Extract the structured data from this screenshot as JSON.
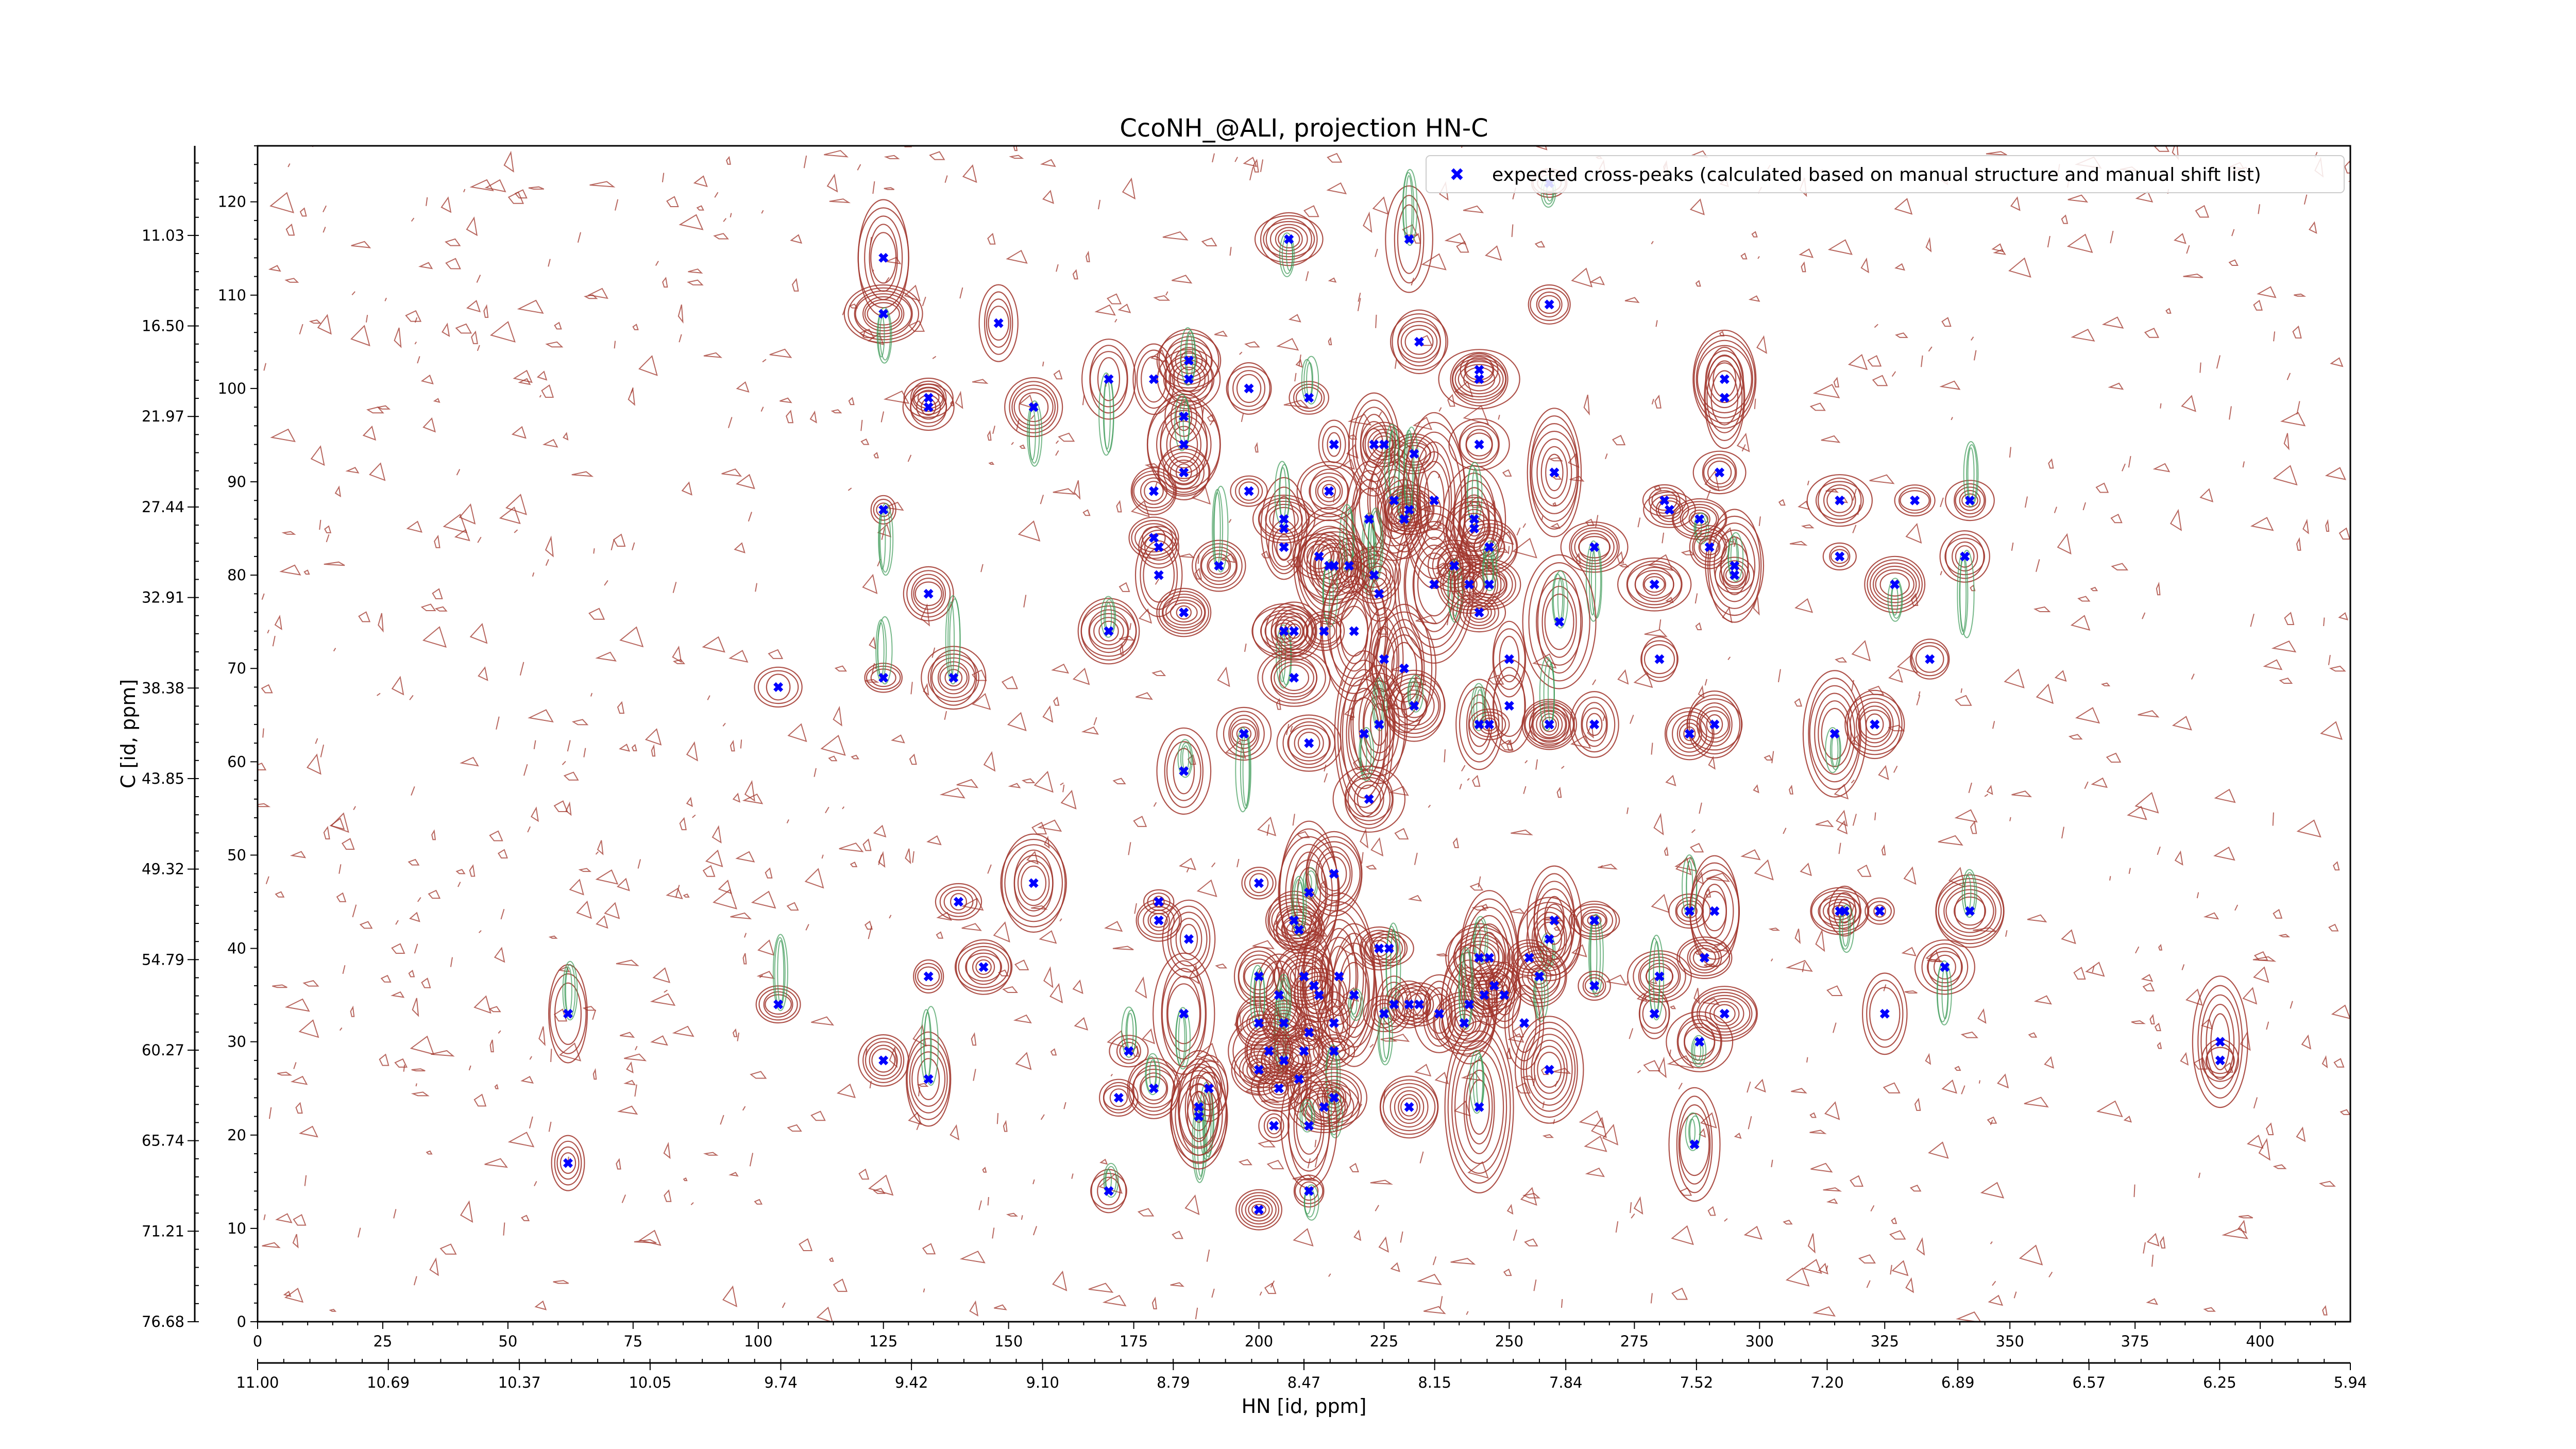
{
  "chart_data": {
    "type": "scatter",
    "title": "CcoNH_@ALI, projection HN-C",
    "xlabel": "HN [id, ppm]",
    "ylabel": "C [id, ppm]",
    "xlim": [
      0,
      418
    ],
    "ylim": [
      0,
      126
    ],
    "x_ticks": [
      0,
      25,
      50,
      75,
      100,
      125,
      150,
      175,
      200,
      225,
      250,
      275,
      300,
      325,
      350,
      375,
      400
    ],
    "y_ticks": [
      0,
      10,
      20,
      30,
      40,
      50,
      60,
      70,
      80,
      90,
      100,
      110,
      120
    ],
    "x_secondary_ticks": [
      {
        "pos": 0,
        "label": "11.00"
      },
      {
        "pos": 26.1,
        "label": "10.69"
      },
      {
        "pos": 52.3,
        "label": "10.37"
      },
      {
        "pos": 78.4,
        "label": "10.05"
      },
      {
        "pos": 104.5,
        "label": "9.74"
      },
      {
        "pos": 130.6,
        "label": "9.42"
      },
      {
        "pos": 156.8,
        "label": "9.10"
      },
      {
        "pos": 182.9,
        "label": "8.79"
      },
      {
        "pos": 209.0,
        "label": "8.47"
      },
      {
        "pos": 235.1,
        "label": "8.15"
      },
      {
        "pos": 261.3,
        "label": "7.84"
      },
      {
        "pos": 287.4,
        "label": "7.52"
      },
      {
        "pos": 313.5,
        "label": "7.20"
      },
      {
        "pos": 339.6,
        "label": "6.89"
      },
      {
        "pos": 365.8,
        "label": "6.57"
      },
      {
        "pos": 391.9,
        "label": "6.25"
      },
      {
        "pos": 418.0,
        "label": "5.94"
      }
    ],
    "y_secondary_ticks": [
      {
        "pos": 0,
        "label": "76.68"
      },
      {
        "pos": 9.7,
        "label": "71.21"
      },
      {
        "pos": 19.4,
        "label": "65.74"
      },
      {
        "pos": 29.1,
        "label": "60.27"
      },
      {
        "pos": 38.8,
        "label": "54.79"
      },
      {
        "pos": 48.5,
        "label": "49.32"
      },
      {
        "pos": 58.2,
        "label": "43.85"
      },
      {
        "pos": 67.9,
        "label": "38.38"
      },
      {
        "pos": 77.6,
        "label": "32.91"
      },
      {
        "pos": 87.3,
        "label": "27.44"
      },
      {
        "pos": 97.0,
        "label": "21.97"
      },
      {
        "pos": 106.7,
        "label": "16.50"
      },
      {
        "pos": 116.4,
        "label": "11.03"
      }
    ],
    "legend": {
      "placement": "top-right",
      "entries": [
        "expected cross-peaks (calculated based on manual structure and manual shift list)"
      ]
    },
    "series": [
      {
        "name": "expected cross-peaks (calculated based on manual structure and manual shift list)",
        "color": "#0000ff",
        "marker": "x",
        "points": [
          [
            125,
            114
          ],
          [
            125,
            108
          ],
          [
            148,
            107
          ],
          [
            134,
            99
          ],
          [
            134,
            98
          ],
          [
            155,
            98
          ],
          [
            170,
            101
          ],
          [
            179,
            101
          ],
          [
            186,
            103
          ],
          [
            186,
            101
          ],
          [
            185,
            97
          ],
          [
            185,
            94
          ],
          [
            185,
            91
          ],
          [
            198,
            100
          ],
          [
            210,
            99
          ],
          [
            215,
            94
          ],
          [
            206,
            116
          ],
          [
            230,
            116
          ],
          [
            258,
            122
          ],
          [
            258,
            109
          ],
          [
            232,
            105
          ],
          [
            244,
            102
          ],
          [
            244,
            101
          ],
          [
            244,
            94
          ],
          [
            223,
            94
          ],
          [
            225,
            94
          ],
          [
            231,
            93
          ],
          [
            259,
            91
          ],
          [
            293,
            101
          ],
          [
            293,
            99
          ],
          [
            292,
            91
          ],
          [
            125,
            87
          ],
          [
            179,
            89
          ],
          [
            198,
            89
          ],
          [
            214,
            89
          ],
          [
            205,
            85
          ],
          [
            205,
            86
          ],
          [
            222,
            86
          ],
          [
            227,
            88
          ],
          [
            229,
            86
          ],
          [
            230,
            87
          ],
          [
            235,
            88
          ],
          [
            229,
            86
          ],
          [
            243,
            86
          ],
          [
            243,
            85
          ],
          [
            205,
            83
          ],
          [
            212,
            82
          ],
          [
            215,
            81
          ],
          [
            218,
            81
          ],
          [
            246,
            83
          ],
          [
            267,
            83
          ],
          [
            214,
            81
          ],
          [
            192,
            81
          ],
          [
            170,
            74
          ],
          [
            179,
            84
          ],
          [
            180,
            83
          ],
          [
            180,
            80
          ],
          [
            185,
            76
          ],
          [
            223,
            80
          ],
          [
            224,
            78
          ],
          [
            235,
            79
          ],
          [
            239,
            81
          ],
          [
            242,
            79
          ],
          [
            246,
            79
          ],
          [
            244,
            76
          ],
          [
            260,
            75
          ],
          [
            282,
            87
          ],
          [
            288,
            86
          ],
          [
            281,
            88
          ],
          [
            290,
            83
          ],
          [
            295,
            81
          ],
          [
            295,
            80
          ],
          [
            316,
            88
          ],
          [
            331,
            88
          ],
          [
            342,
            88
          ],
          [
            316,
            82
          ],
          [
            341,
            82
          ],
          [
            327,
            79
          ],
          [
            279,
            79
          ],
          [
            134,
            78
          ],
          [
            104,
            68
          ],
          [
            125,
            69
          ],
          [
            139,
            69
          ],
          [
            205,
            74
          ],
          [
            207,
            74
          ],
          [
            213,
            74
          ],
          [
            219,
            74
          ],
          [
            225,
            71
          ],
          [
            229,
            70
          ],
          [
            250,
            71
          ],
          [
            280,
            71
          ],
          [
            207,
            69
          ],
          [
            231,
            66
          ],
          [
            250,
            66
          ],
          [
            244,
            64
          ],
          [
            246,
            64
          ],
          [
            224,
            64
          ],
          [
            221,
            63
          ],
          [
            210,
            62
          ],
          [
            258,
            64
          ],
          [
            258,
            64
          ],
          [
            267,
            64
          ],
          [
            286,
            63
          ],
          [
            291,
            64
          ],
          [
            315,
            63
          ],
          [
            323,
            64
          ],
          [
            334,
            71
          ],
          [
            197,
            63
          ],
          [
            185,
            59
          ],
          [
            222,
            56
          ],
          [
            140,
            45
          ],
          [
            155,
            47
          ],
          [
            180,
            45
          ],
          [
            180,
            43
          ],
          [
            186,
            41
          ],
          [
            200,
            47
          ],
          [
            210,
            46
          ],
          [
            215,
            48
          ],
          [
            207,
            43
          ],
          [
            208,
            42
          ],
          [
            258,
            41
          ],
          [
            259,
            43
          ],
          [
            267,
            43
          ],
          [
            286,
            44
          ],
          [
            291,
            44
          ],
          [
            316,
            44
          ],
          [
            317,
            44
          ],
          [
            324,
            44
          ],
          [
            342,
            44
          ],
          [
            224,
            40
          ],
          [
            226,
            40
          ],
          [
            244,
            39
          ],
          [
            246,
            39
          ],
          [
            254,
            39
          ],
          [
            145,
            38
          ],
          [
            134,
            37
          ],
          [
            200,
            37
          ],
          [
            209,
            37
          ],
          [
            211,
            36
          ],
          [
            216,
            37
          ],
          [
            204,
            35
          ],
          [
            212,
            35
          ],
          [
            219,
            35
          ],
          [
            227,
            34
          ],
          [
            232,
            34
          ],
          [
            230,
            34
          ],
          [
            242,
            34
          ],
          [
            249,
            35
          ],
          [
            256,
            37
          ],
          [
            245,
            35
          ],
          [
            247,
            36
          ],
          [
            267,
            36
          ],
          [
            280,
            37
          ],
          [
            289,
            39
          ],
          [
            337,
            38
          ],
          [
            62,
            33
          ],
          [
            104,
            34
          ],
          [
            185,
            33
          ],
          [
            200,
            32
          ],
          [
            205,
            32
          ],
          [
            210,
            31
          ],
          [
            215,
            32
          ],
          [
            225,
            33
          ],
          [
            236,
            33
          ],
          [
            241,
            32
          ],
          [
            253,
            32
          ],
          [
            279,
            33
          ],
          [
            293,
            33
          ],
          [
            325,
            33
          ],
          [
            174,
            29
          ],
          [
            202,
            29
          ],
          [
            205,
            28
          ],
          [
            209,
            29
          ],
          [
            215,
            29
          ],
          [
            200,
            27
          ],
          [
            190,
            25
          ],
          [
            204,
            25
          ],
          [
            208,
            26
          ],
          [
            288,
            30
          ],
          [
            392,
            30
          ],
          [
            392,
            28
          ],
          [
            125,
            28
          ],
          [
            134,
            26
          ],
          [
            258,
            27
          ],
          [
            172,
            24
          ],
          [
            179,
            25
          ],
          [
            188,
            23
          ],
          [
            188,
            22
          ],
          [
            215,
            24
          ],
          [
            213,
            23
          ],
          [
            230,
            23
          ],
          [
            244,
            23
          ],
          [
            203,
            21
          ],
          [
            210,
            21
          ],
          [
            287,
            19
          ],
          [
            62,
            17
          ],
          [
            170,
            14
          ],
          [
            200,
            12
          ],
          [
            210,
            14
          ]
        ]
      }
    ]
  }
}
